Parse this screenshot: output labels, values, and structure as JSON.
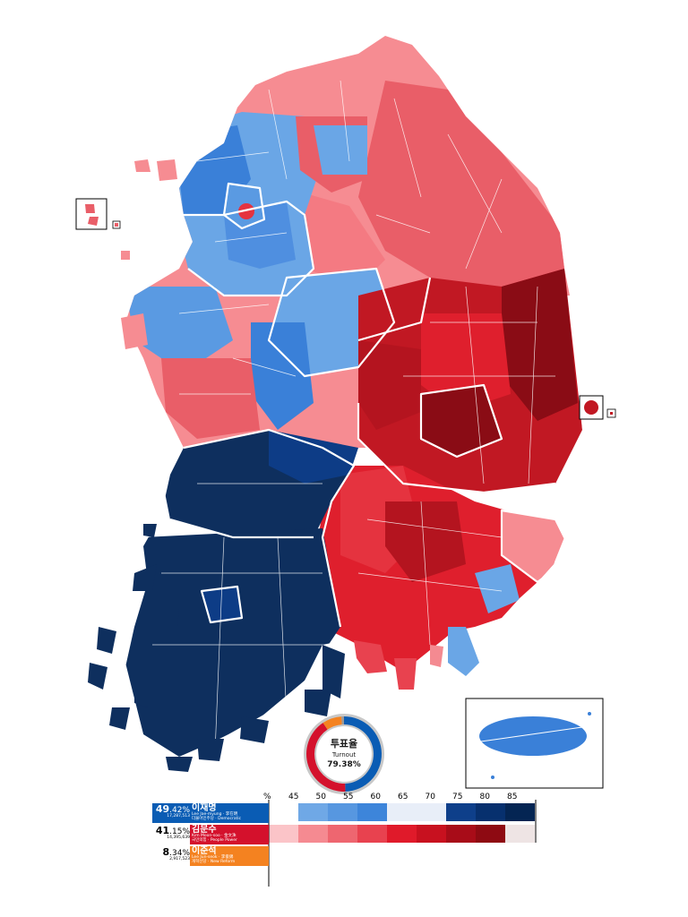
{
  "turnout": {
    "label_ko": "투표율",
    "label_en": "Turnout",
    "value": "79.38%",
    "ring": [
      {
        "fraction": 0.4942,
        "color": "#0a5cb4"
      },
      {
        "fraction": 0.4115,
        "color": "#d4112c"
      },
      {
        "fraction": 0.0834,
        "color": "#f48220"
      },
      {
        "fraction": 0.0109,
        "color": "#9a9a9a"
      }
    ]
  },
  "candidates": [
    {
      "percent_main": "49",
      "percent_decimal": ".42%",
      "votes": "17,287,513",
      "name_ko": "이재명",
      "name_rom": "Lee Jae-myung  ·  李在明",
      "party": "더불어민주당 · Democratic",
      "color": "#0a5cb4"
    },
    {
      "percent_main": "41",
      "percent_decimal": ".15%",
      "votes": "14,395,639",
      "name_ko": "김문수",
      "name_rom": "Kim Moon-soo  ·  金文洙",
      "party": "국민의힘 · People Power",
      "color": "#d4112c"
    },
    {
      "percent_main": "8",
      "percent_decimal": ".34%",
      "votes": "2,917,523",
      "name_ko": "이준석",
      "name_rom": "Lee Jun-seok  ·  李俊錫",
      "party": "개혁신당 · New Reform",
      "color": "#f48220"
    }
  ],
  "scale": {
    "unit": "%",
    "ticks": [
      "45",
      "50",
      "55",
      "60",
      "65",
      "70",
      "75",
      "80",
      "85"
    ],
    "blue": [
      "#ffffff",
      "#6fa8e6",
      "#5797e0",
      "#3d85da",
      "#e8eef8",
      "#e8eef8",
      "#0e3f8a",
      "#07306e",
      "#042553"
    ],
    "red": [
      "#fbc4c8",
      "#f58a91",
      "#ee6670",
      "#e8424f",
      "#e01a2a",
      "#c8111f",
      "#a80c18",
      "#8e0a12",
      "#eee4e4"
    ]
  },
  "colors": {
    "blue_dark": "#0e2f5e",
    "blue_navy": "#0d3c86",
    "blue_mid": "#3a80d8",
    "blue_light": "#6aa6e6",
    "red_light": "#f68c92",
    "red_mid": "#e95e68",
    "red_strong": "#df1f2d",
    "red_deep": "#b4141f",
    "red_darkest": "#8a0c15"
  }
}
